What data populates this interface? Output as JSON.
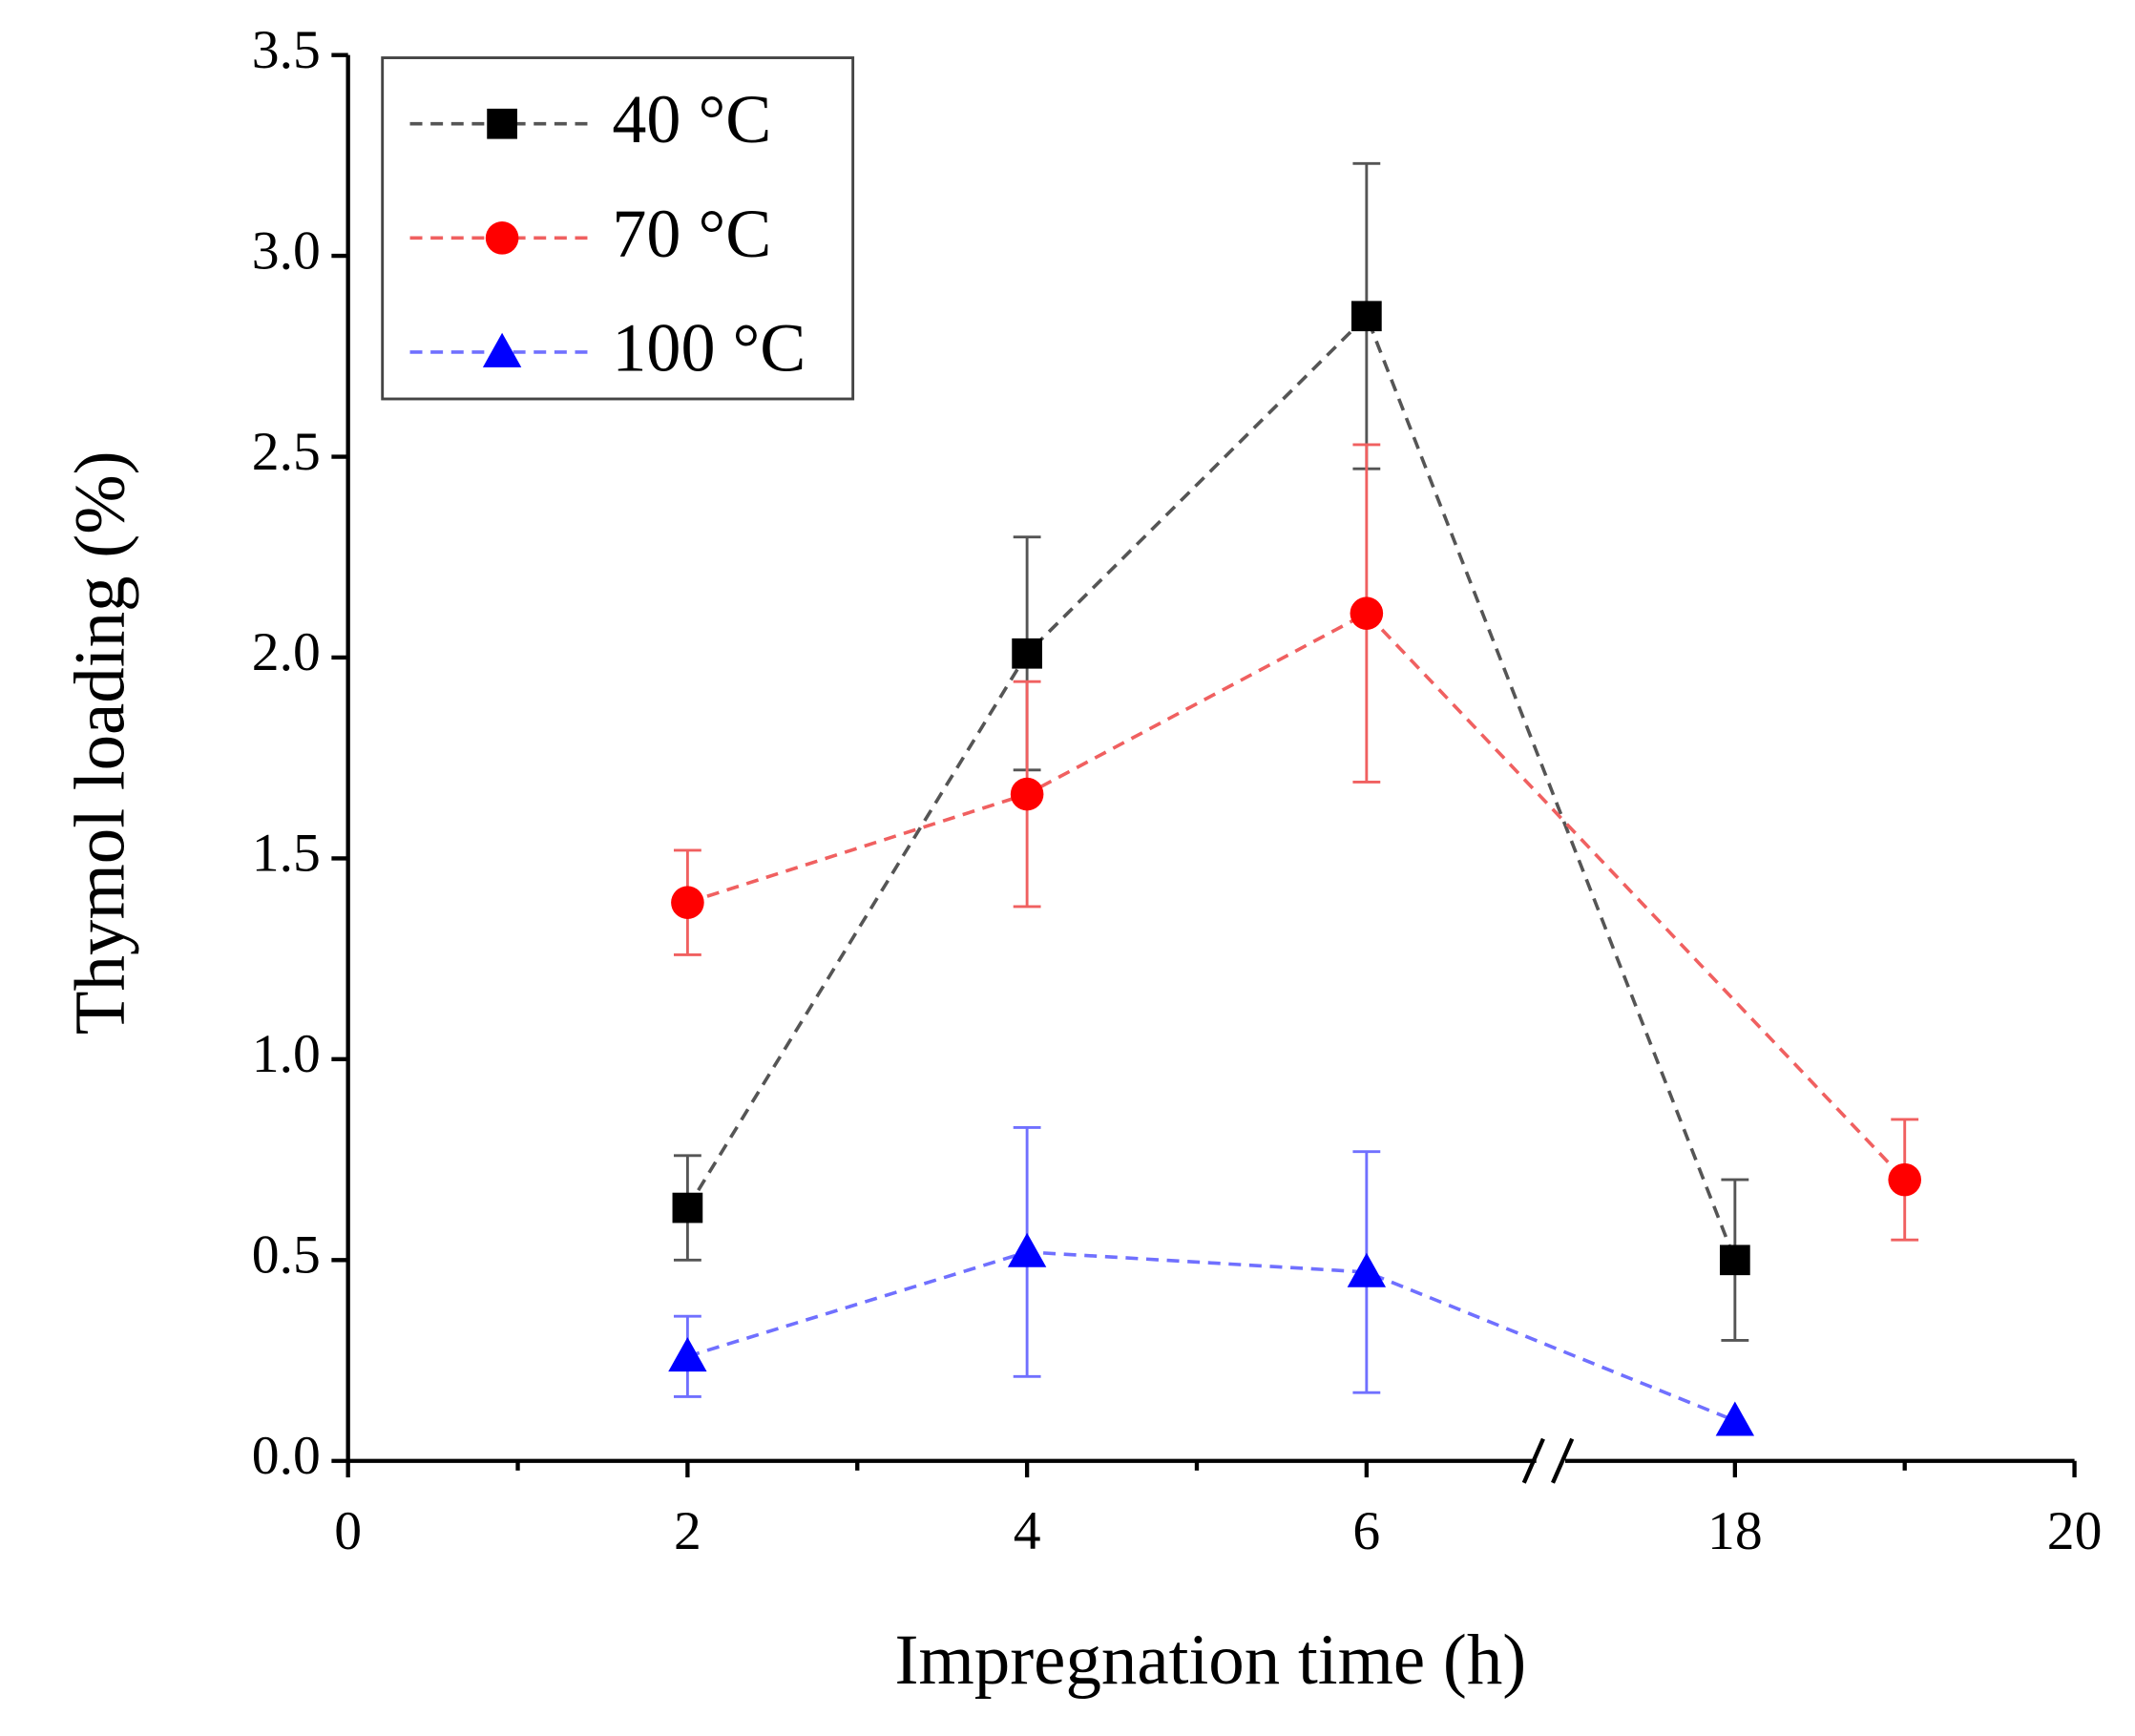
{
  "chart_data": {
    "type": "line",
    "xlabel": "Impregnation time (h)",
    "ylabel": "Thymol loading (%)",
    "xlim": [
      0,
      20
    ],
    "x_break": [
      7,
      17
    ],
    "xticks": [
      0,
      2,
      4,
      6,
      18,
      20
    ],
    "xminorticks": [
      1,
      3,
      5,
      19
    ],
    "ylim": [
      0,
      3.5
    ],
    "yticks": [
      {
        "value": 0,
        "label": "0.0"
      },
      0.5,
      {
        "value": 1,
        "label": "1.0"
      },
      1.5,
      {
        "value": 2,
        "label": "2.0"
      },
      2.5,
      {
        "value": 3,
        "label": "3.0"
      },
      3.5
    ],
    "legend": "upper left",
    "series": [
      {
        "name": "40 °C",
        "color": "#000000",
        "marker": "square",
        "x": [
          2,
          4,
          6,
          18
        ],
        "values": [
          0.63,
          2.01,
          2.85,
          0.5
        ],
        "errors": [
          0.13,
          0.29,
          0.38,
          0.2
        ]
      },
      {
        "name": "70 °C",
        "color": "#ff0000",
        "marker": "circle",
        "x": [
          2,
          4,
          6,
          19
        ],
        "values": [
          1.39,
          1.66,
          2.11,
          0.7
        ],
        "errors": [
          0.13,
          0.28,
          0.42,
          0.15
        ]
      },
      {
        "name": "100 °C",
        "color": "#0000ff",
        "marker": "triangle",
        "x": [
          2,
          4,
          6,
          18
        ],
        "values": [
          0.26,
          0.52,
          0.47,
          0.1
        ],
        "errors": [
          0.1,
          0.31,
          0.3,
          null
        ]
      }
    ]
  }
}
